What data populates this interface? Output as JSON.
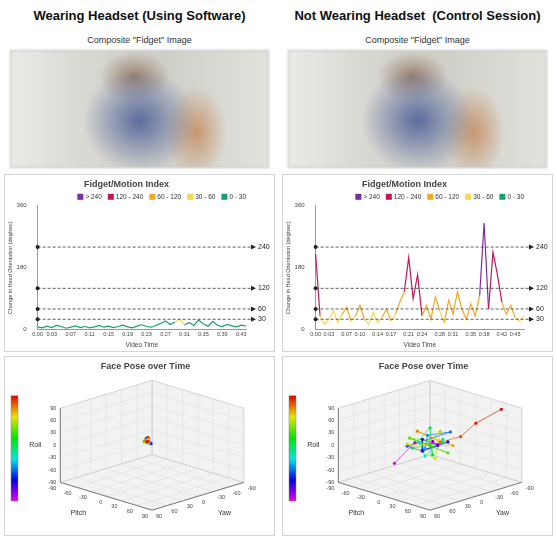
{
  "columns": [
    {
      "title": "Wearing Headset (Using Software)",
      "image_caption": "Composite \"Fidget\" Image"
    },
    {
      "title": "Not Wearing Headset  (Control Session)",
      "image_caption": "Composite \"Fidget\" Image"
    }
  ],
  "chart_data": [
    {
      "type": "line",
      "title": "Fidget/Motion Index",
      "x_label": "Video Time",
      "y_label": "Change in Head Orientation (deg/sec)",
      "categories": [
        "0:00",
        null,
        null,
        "0:03",
        null,
        null,
        null,
        "0:07",
        null,
        null,
        null,
        "0:11",
        null,
        null,
        null,
        "0:15",
        null,
        null,
        null,
        "0:19",
        null,
        null,
        null,
        "0:23",
        null,
        null,
        null,
        "0:27",
        null,
        null,
        null,
        "0:31",
        null,
        null,
        null,
        "0:35",
        null,
        null,
        null,
        "0:39",
        null,
        null,
        null,
        "0:43",
        null
      ],
      "values": [
        8,
        5,
        10,
        6,
        12,
        9,
        4,
        7,
        11,
        6,
        9,
        5,
        8,
        12,
        7,
        10,
        6,
        9,
        13,
        8,
        5,
        10,
        14,
        9,
        7,
        12,
        18,
        25,
        15,
        22,
        30,
        14,
        20,
        12,
        28,
        16,
        10,
        24,
        12,
        9,
        15,
        11,
        8,
        13,
        10
      ],
      "ylim": [
        0,
        360
      ],
      "yticks": [
        0,
        180,
        360
      ],
      "grid": false,
      "reference_lines": [
        240,
        120,
        60,
        30
      ],
      "bands": [
        {
          "label": "> 240",
          "min": 240,
          "max": 360,
          "color": "#7b2d9e"
        },
        {
          "label": "120 - 240",
          "min": 120,
          "max": 240,
          "color": "#c2185b"
        },
        {
          "label": "60 - 120",
          "min": 60,
          "max": 120,
          "color": "#f5a623"
        },
        {
          "label": "30 - 60",
          "min": 30,
          "max": 60,
          "color": "#f2d94e"
        },
        {
          "label": "0 - 30",
          "min": 0,
          "max": 30,
          "color": "#1b9e77"
        }
      ]
    },
    {
      "type": "scatter",
      "title": "Face Pose over Time",
      "x_label": "Yaw",
      "y_label": "Pitch",
      "z_label": "Roll",
      "points": [
        [
          5,
          0,
          10
        ],
        [
          8,
          2,
          12
        ],
        [
          10,
          -3,
          15
        ],
        [
          6,
          4,
          8
        ],
        [
          12,
          1,
          18
        ],
        [
          9,
          -2,
          20
        ],
        [
          14,
          3,
          14
        ],
        [
          7,
          0,
          11
        ],
        [
          11,
          5,
          22
        ],
        [
          13,
          -1,
          16
        ],
        [
          8,
          2,
          9
        ],
        [
          10,
          0,
          13
        ],
        [
          15,
          4,
          19
        ],
        [
          12,
          -4,
          12
        ],
        [
          9,
          1,
          17
        ],
        [
          11,
          3,
          21
        ],
        [
          6,
          -2,
          10
        ],
        [
          13,
          0,
          15
        ],
        [
          10,
          2,
          24
        ],
        [
          8,
          -1,
          12
        ]
      ],
      "xlim": [
        -90,
        90
      ],
      "xticks": [
        -90,
        -60,
        -30,
        0,
        30,
        60,
        90
      ],
      "ylim": [
        -90,
        90
      ],
      "yticks": [
        -90,
        -60,
        -30,
        0,
        30,
        60,
        90
      ],
      "zlim": [
        -90,
        90
      ],
      "zticks": [
        -90,
        -60,
        -30,
        0,
        30,
        60,
        90
      ],
      "grid": true
    },
    {
      "type": "line",
      "title": "Fidget/Motion Index",
      "x_label": "Video Time",
      "y_label": "Change in Head Orientation (deg/sec)",
      "categories": [
        "0:00",
        null,
        null,
        "0:03",
        null,
        null,
        null,
        "0:07",
        null,
        null,
        "0:10",
        null,
        null,
        null,
        "0:14",
        null,
        null,
        "0:17",
        null,
        null,
        null,
        "0:21",
        null,
        null,
        "0:24",
        null,
        null,
        null,
        "0:28",
        null,
        null,
        "0:31",
        null,
        null,
        null,
        "0:35",
        null,
        null,
        "0:38",
        null,
        null,
        null,
        "0:42",
        null,
        null,
        "0:45",
        null,
        null
      ],
      "values": [
        220,
        40,
        15,
        30,
        55,
        20,
        45,
        65,
        25,
        40,
        70,
        30,
        15,
        50,
        20,
        35,
        60,
        25,
        45,
        80,
        110,
        210,
        90,
        160,
        40,
        70,
        30,
        95,
        55,
        20,
        85,
        45,
        110,
        60,
        30,
        75,
        40,
        100,
        310,
        60,
        225,
        160,
        80,
        45,
        70,
        35,
        25,
        40
      ],
      "ylim": [
        0,
        360
      ],
      "yticks": [
        0,
        180,
        360
      ],
      "grid": false,
      "reference_lines": [
        240,
        120,
        60,
        30
      ],
      "bands": [
        {
          "label": "> 240",
          "min": 240,
          "max": 360,
          "color": "#7b2d9e"
        },
        {
          "label": "120 - 240",
          "min": 120,
          "max": 240,
          "color": "#c2185b"
        },
        {
          "label": "60 - 120",
          "min": 60,
          "max": 120,
          "color": "#f5a623"
        },
        {
          "label": "30 - 60",
          "min": 30,
          "max": 60,
          "color": "#f2d94e"
        },
        {
          "label": "0 - 30",
          "min": 0,
          "max": 30,
          "color": "#1b9e77"
        }
      ]
    },
    {
      "type": "scatter",
      "title": "Face Pose over Time",
      "x_label": "Yaw",
      "y_label": "Pitch",
      "z_label": "Roll",
      "points": [
        [
          40,
          -30,
          -40
        ],
        [
          20,
          -10,
          10
        ],
        [
          -10,
          5,
          0
        ],
        [
          5,
          10,
          15
        ],
        [
          -20,
          -5,
          -10
        ],
        [
          15,
          0,
          20
        ],
        [
          30,
          15,
          5
        ],
        [
          -15,
          20,
          10
        ],
        [
          0,
          -15,
          -20
        ],
        [
          25,
          -20,
          0
        ],
        [
          -30,
          10,
          25
        ],
        [
          10,
          5,
          30
        ],
        [
          35,
          25,
          15
        ],
        [
          -5,
          -25,
          -5
        ],
        [
          20,
          10,
          -15
        ],
        [
          -25,
          0,
          5
        ],
        [
          5,
          30,
          20
        ],
        [
          40,
          5,
          10
        ],
        [
          -10,
          -10,
          35
        ],
        [
          15,
          20,
          -10
        ],
        [
          0,
          0,
          0
        ],
        [
          30,
          -10,
          25
        ],
        [
          -20,
          15,
          -20
        ],
        [
          10,
          -30,
          10
        ],
        [
          25,
          25,
          30
        ],
        [
          -35,
          -15,
          15
        ],
        [
          5,
          15,
          -25
        ],
        [
          45,
          0,
          20
        ],
        [
          -15,
          30,
          5
        ],
        [
          20,
          -5,
          40
        ],
        [
          0,
          20,
          15
        ],
        [
          -25,
          35,
          25
        ],
        [
          -50,
          40,
          50
        ],
        [
          -80,
          60,
          80
        ]
      ],
      "xlim": [
        -90,
        90
      ],
      "xticks": [
        -90,
        -60,
        -30,
        0,
        30,
        60,
        90
      ],
      "ylim": [
        -90,
        90
      ],
      "yticks": [
        -90,
        -60,
        -30,
        0,
        30,
        60,
        90
      ],
      "zlim": [
        -90,
        90
      ],
      "zticks": [
        -90,
        -60,
        -30,
        0,
        30,
        60,
        90
      ],
      "grid": true
    }
  ]
}
